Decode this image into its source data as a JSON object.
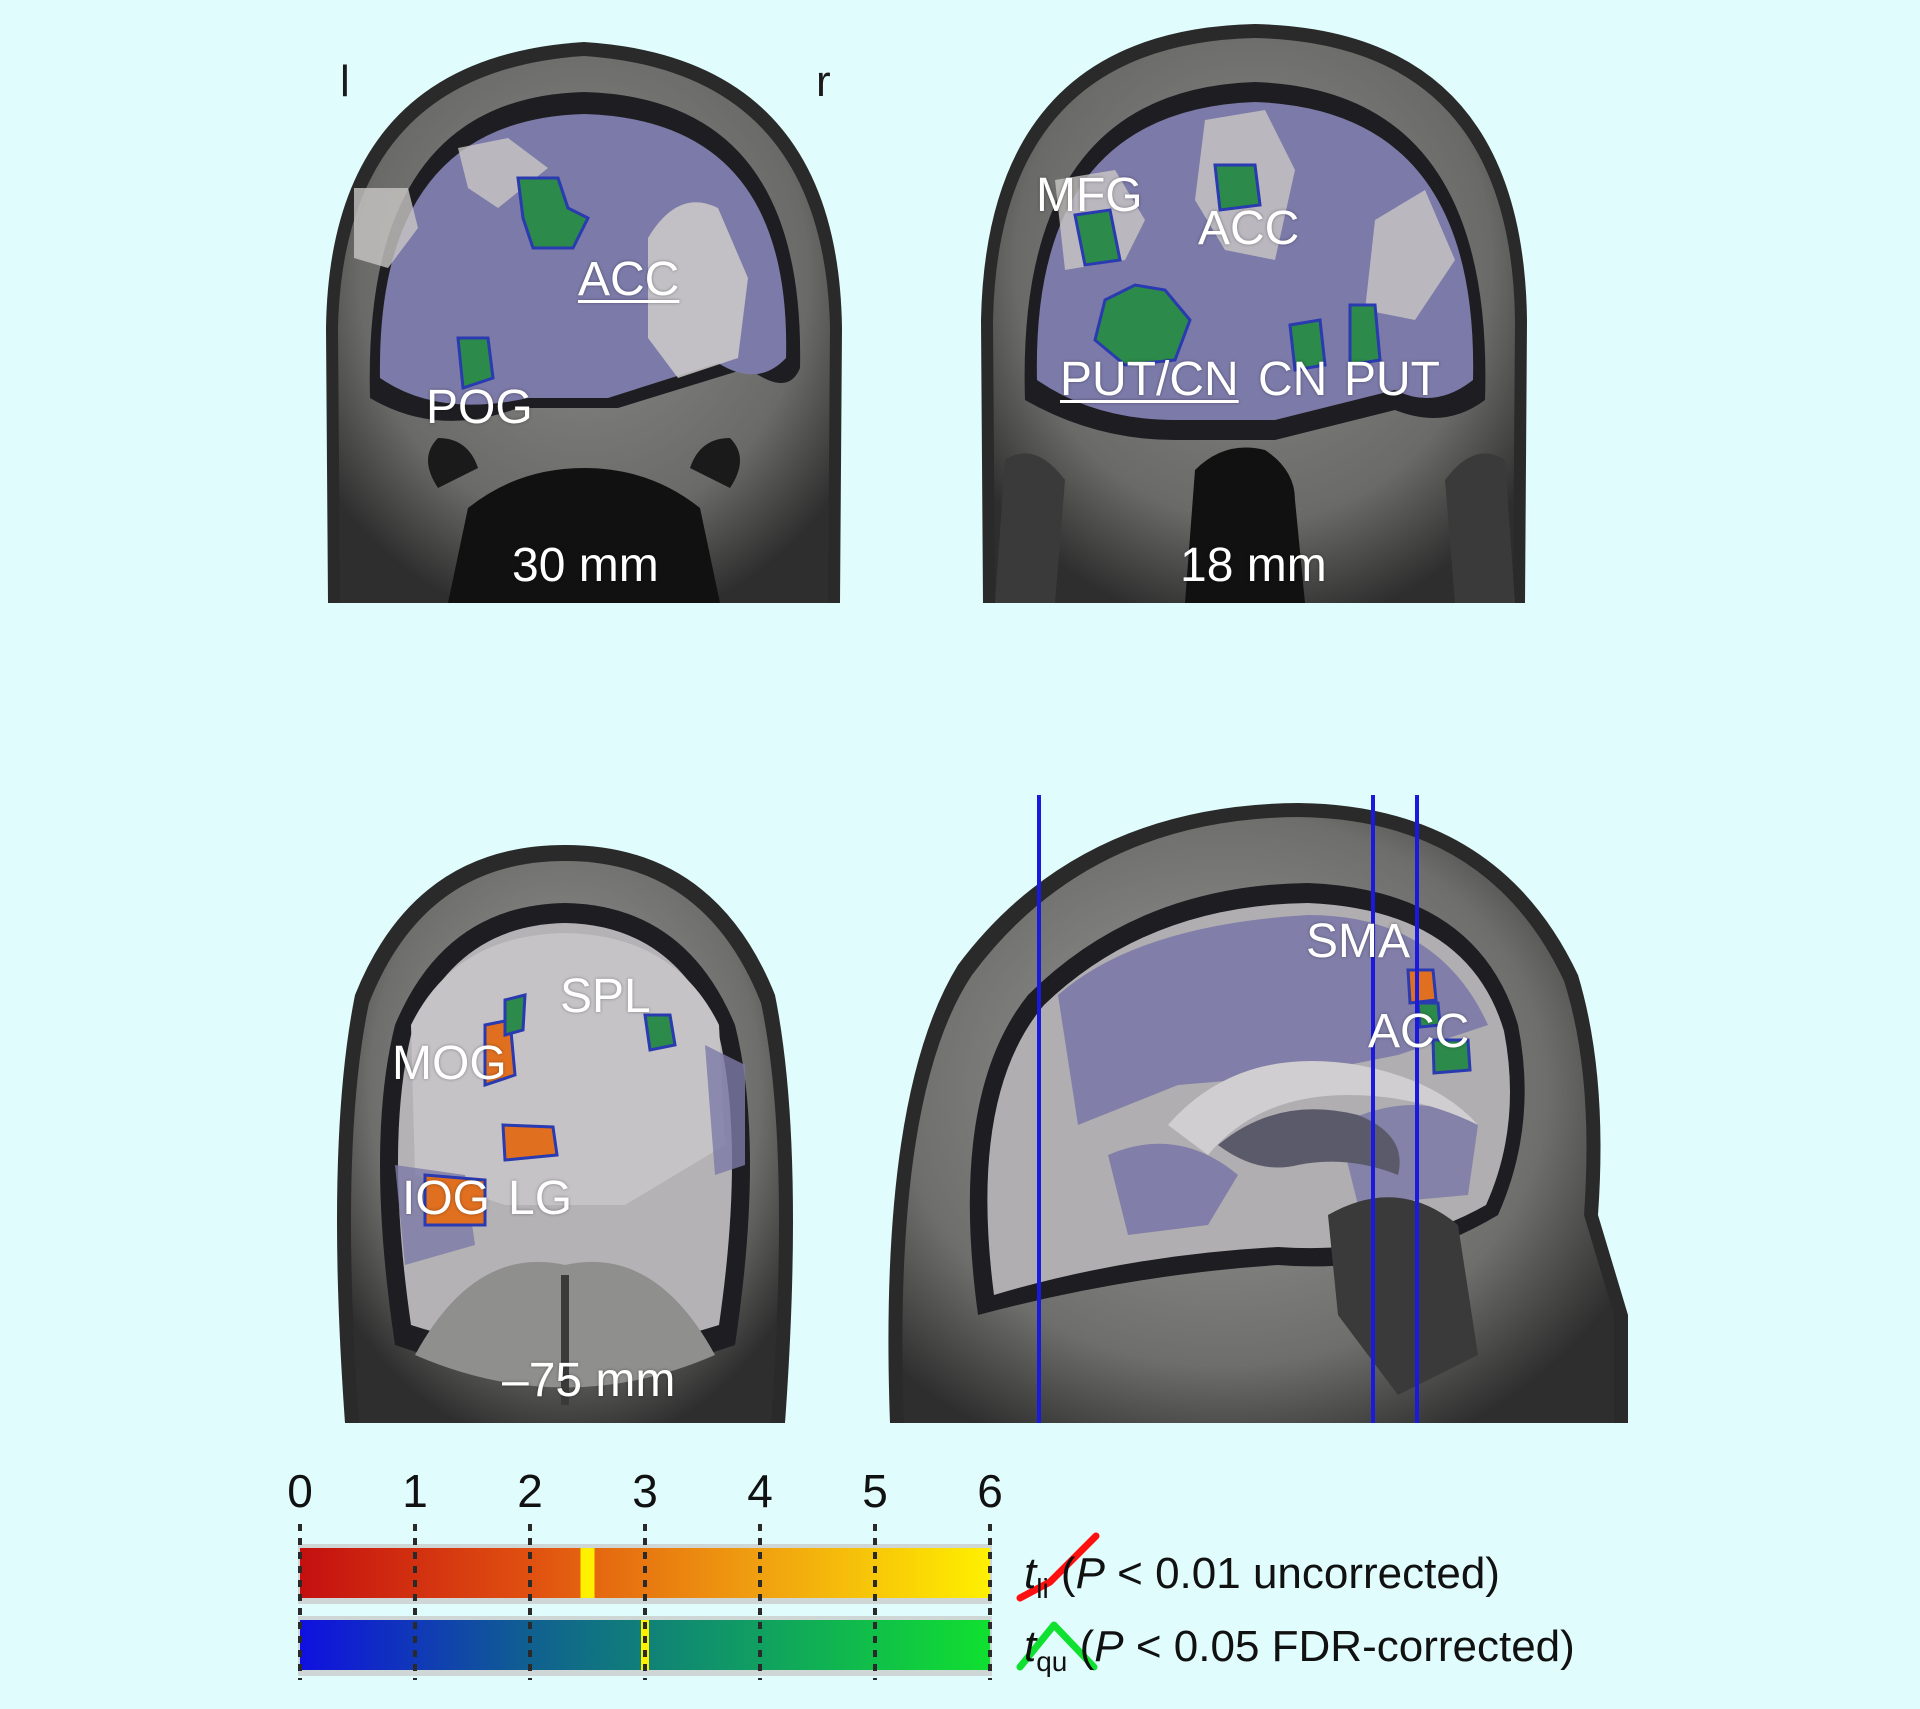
{
  "orientation": {
    "left": "l",
    "right": "r"
  },
  "panels": {
    "coronal_30": {
      "slice_label": "30 mm",
      "regions": [
        "ACC",
        "POG"
      ]
    },
    "coronal_18": {
      "slice_label": "18 mm",
      "regions": [
        "MFG",
        "ACC",
        "PUT/CN",
        "CN",
        "PUT"
      ]
    },
    "coronal_m75": {
      "slice_label": "–75 mm",
      "regions": [
        "SPL",
        "MOG",
        "IOG",
        "LG"
      ]
    },
    "sagittal": {
      "regions": [
        "SMA",
        "ACC"
      ]
    }
  },
  "colorbar": {
    "ticks": [
      "0",
      "1",
      "2",
      "3",
      "4",
      "5",
      "6"
    ],
    "linear": {
      "symbol": "t",
      "subscript": "li",
      "threshold_value": 2.5,
      "note_prefix": "(",
      "p_symbol": "P",
      "note_suffix": " < 0.01 uncorrected)",
      "colors": [
        "#c41010",
        "#e05010",
        "#f0a010",
        "#fff000"
      ]
    },
    "quadratic": {
      "symbol": "t",
      "subscript": "qu",
      "threshold_value": 3.0,
      "note_prefix": "(",
      "p_symbol": "P",
      "note_suffix": " < 0.05 FDR-corrected)",
      "colors": [
        "#1010e0",
        "#106090",
        "#10a060",
        "#10e030"
      ]
    }
  }
}
